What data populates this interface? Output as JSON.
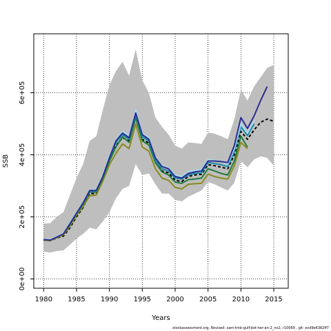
{
  "chart_data": {
    "type": "line",
    "xlabel": "Years",
    "ylabel": "SSB",
    "xlim": [
      1978.5,
      2017.2
    ],
    "ylim": [
      -30000,
      790000
    ],
    "x_ticks": [
      1980,
      1985,
      1990,
      1995,
      2000,
      2005,
      2010,
      2015
    ],
    "x_tick_labels": [
      "1980",
      "1985",
      "1990",
      "1995",
      "2000",
      "2005",
      "2010",
      "2015"
    ],
    "y_ticks": [
      0,
      200000,
      400000,
      600000
    ],
    "y_tick_labels": [
      "0e+00",
      "2e+05",
      "4e+05",
      "6e+05"
    ],
    "grid": "dotted",
    "confidence_band": {
      "color": "#bebebe",
      "x": [
        1980,
        1981,
        1982,
        1983,
        1984,
        1985,
        1986,
        1987,
        1988,
        1989,
        1990,
        1991,
        1992,
        1993,
        1994,
        1995,
        1996,
        1997,
        1998,
        1999,
        2000,
        2001,
        2002,
        2003,
        2004,
        2005,
        2006,
        2007,
        2008,
        2009,
        2010,
        2011,
        2012,
        2013,
        2014,
        2015
      ],
      "upper": [
        178000,
        180000,
        200000,
        215000,
        270000,
        325000,
        370000,
        445000,
        460000,
        545000,
        625000,
        670000,
        700000,
        655000,
        740000,
        640000,
        600000,
        520000,
        490000,
        465000,
        430000,
        420000,
        440000,
        438000,
        435000,
        472000,
        468000,
        460000,
        450000,
        515000,
        610000,
        575000,
        620000,
        650000,
        680000,
        690000
      ],
      "lower": [
        88000,
        85000,
        90000,
        92000,
        110000,
        130000,
        145000,
        165000,
        160000,
        185000,
        215000,
        260000,
        290000,
        300000,
        370000,
        335000,
        340000,
        305000,
        275000,
        275000,
        255000,
        250000,
        265000,
        275000,
        285000,
        312000,
        305000,
        295000,
        285000,
        310000,
        380000,
        360000,
        385000,
        395000,
        390000,
        365000
      ]
    },
    "series": [
      {
        "color": "#000000",
        "dash": "4,3",
        "x": [
          1980,
          1981,
          1982,
          1983,
          1984,
          1985,
          1986,
          1987,
          1988,
          1989,
          1990,
          1991,
          1992,
          1993,
          1994,
          1995,
          1996,
          1997,
          1998,
          1999,
          2000,
          2001,
          2002,
          2003,
          2004,
          2005,
          2006,
          2007,
          2008,
          2009,
          2010,
          2011,
          2012,
          2013,
          2014,
          2015
        ],
        "values": [
          125000,
          123000,
          132000,
          138000,
          165000,
          200000,
          230000,
          275000,
          275000,
          320000,
          380000,
          430000,
          455000,
          445000,
          520000,
          450000,
          438000,
          375000,
          348000,
          342000,
          318000,
          314000,
          330000,
          335000,
          337000,
          368000,
          365000,
          360000,
          355000,
          400000,
          475000,
          450000,
          480000,
          505000,
          515000,
          508000
        ]
      },
      {
        "color": "#8a8a1e",
        "dash": "",
        "x": [
          1980,
          1981,
          1982,
          1983,
          1984,
          1985,
          1986,
          1987,
          1988,
          1989,
          1990,
          1991,
          1992,
          1993,
          1994,
          1995,
          1996,
          1997,
          1998,
          1999,
          2000,
          2001,
          2002,
          2003,
          2004,
          2005,
          2006,
          2007,
          2008,
          2009,
          2010,
          2011
        ],
        "values": [
          125000,
          123000,
          133000,
          142000,
          170000,
          205000,
          233000,
          268000,
          270000,
          315000,
          368000,
          405000,
          435000,
          420000,
          500000,
          425000,
          412000,
          355000,
          325000,
          318000,
          295000,
          290000,
          305000,
          307000,
          308000,
          338000,
          330000,
          325000,
          322000,
          365000,
          440000,
          420000
        ]
      },
      {
        "color": "#1e7a3c",
        "dash": "",
        "x": [
          1980,
          1981,
          1982,
          1983,
          1984,
          1985,
          1986,
          1987,
          1988,
          1989,
          1990,
          1991,
          1992,
          1993,
          1994,
          1995,
          1996,
          1997,
          1998,
          1999,
          2000,
          2001,
          2002,
          2003,
          2004,
          2005,
          2006,
          2007,
          2008,
          2009,
          2010,
          2011
        ],
        "values": [
          128000,
          125000,
          136000,
          145000,
          175000,
          210000,
          240000,
          280000,
          280000,
          325000,
          380000,
          425000,
          458000,
          440000,
          520000,
          445000,
          432000,
          375000,
          345000,
          335000,
          312000,
          308000,
          320000,
          322000,
          325000,
          355000,
          348000,
          340000,
          335000,
          380000,
          460000,
          425000
        ]
      },
      {
        "color": "#1f8aa8",
        "dash": "",
        "x": [
          1980,
          1981,
          1982,
          1983,
          1984,
          1985,
          1986,
          1987,
          1988,
          1989,
          1990,
          1991,
          1992,
          1993,
          1994,
          1995,
          1996,
          1997,
          1998,
          1999,
          2000,
          2001,
          2002,
          2003,
          2004,
          2005,
          2006,
          2007,
          2008,
          2009,
          2010,
          2011,
          2012
        ],
        "values": [
          127000,
          125000,
          135000,
          145000,
          178000,
          212000,
          243000,
          283000,
          283000,
          330000,
          388000,
          440000,
          465000,
          450000,
          530000,
          458000,
          445000,
          382000,
          355000,
          348000,
          325000,
          322000,
          335000,
          340000,
          342000,
          375000,
          372000,
          368000,
          362000,
          410000,
          490000,
          462000,
          500000
        ]
      },
      {
        "color": "#aadcf0",
        "dash": "",
        "x": [
          1980,
          1981,
          1982,
          1983,
          1984,
          1985,
          1986,
          1987,
          1988,
          1989,
          1990,
          1991,
          1992,
          1993,
          1994,
          1995,
          1996,
          1997,
          1998,
          1999,
          2000,
          2001,
          2002,
          2003,
          2004,
          2005,
          2006,
          2007,
          2008,
          2009,
          2010,
          2011,
          2012
        ],
        "values": [
          128000,
          126000,
          137000,
          147000,
          180000,
          215000,
          246000,
          287000,
          287000,
          335000,
          395000,
          448000,
          475000,
          460000,
          545000,
          468000,
          455000,
          392000,
          365000,
          358000,
          335000,
          330000,
          345000,
          350000,
          352000,
          385000,
          382000,
          378000,
          370000,
          420000,
          500000,
          470000,
          510000
        ]
      },
      {
        "color": "#2b2b8c",
        "dash": "",
        "x": [
          1980,
          1981,
          1982,
          1983,
          1984,
          1985,
          1986,
          1987,
          1988,
          1989,
          1990,
          1991,
          1992,
          1993,
          1994,
          1995,
          1996,
          1997,
          1998,
          1999,
          2000,
          2001,
          2002,
          2003,
          2004,
          2005,
          2006,
          2007,
          2008,
          2009,
          2010,
          2011,
          2012,
          2013,
          2014
        ],
        "values": [
          127000,
          125000,
          135000,
          145000,
          178000,
          212000,
          245000,
          285000,
          285000,
          330000,
          390000,
          445000,
          470000,
          455000,
          535000,
          465000,
          450000,
          390000,
          362000,
          355000,
          330000,
          325000,
          340000,
          345000,
          348000,
          380000,
          380000,
          378000,
          375000,
          430000,
          520000,
          485000,
          525000,
          575000,
          620000
        ]
      }
    ]
  },
  "footer_note": "stockassessment.org, Revised: sam-tmb-gulf-bot-her-an-2_no2, r10069 , git: ecd9e6382ff7"
}
